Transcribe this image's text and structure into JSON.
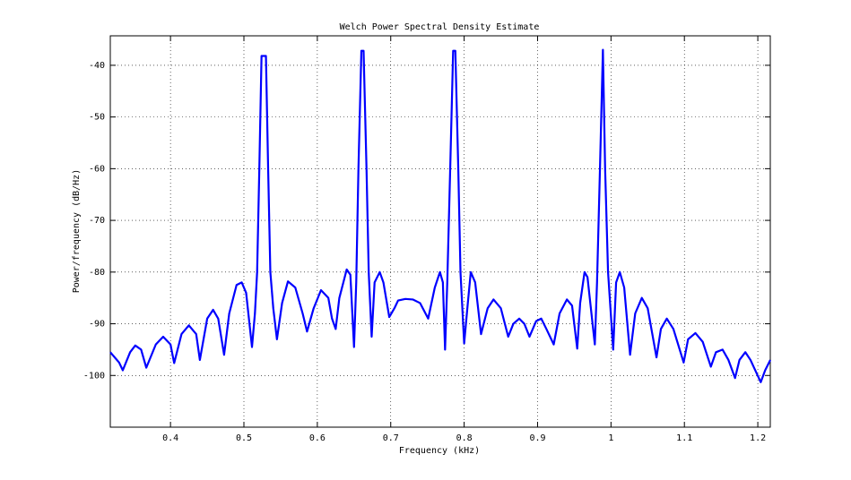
{
  "chart_data": {
    "type": "line",
    "title": "Welch Power Spectral Density Estimate",
    "xlabel": "Frequency (kHz)",
    "ylabel": "Power/frequency (dB/Hz)",
    "xlim": [
      0.318,
      1.217
    ],
    "ylim": [
      -110,
      -34.3
    ],
    "xticks": [
      0.4,
      0.5,
      0.6,
      0.7,
      0.8,
      0.9,
      1,
      1.1,
      1.2
    ],
    "yticks": [
      -100,
      -90,
      -80,
      -70,
      -60,
      -50,
      -40
    ],
    "grid": true,
    "x": [
      0.318,
      0.33,
      0.335,
      0.345,
      0.352,
      0.36,
      0.367,
      0.38,
      0.39,
      0.4,
      0.405,
      0.415,
      0.425,
      0.435,
      0.44,
      0.45,
      0.458,
      0.465,
      0.473,
      0.48,
      0.49,
      0.497,
      0.503,
      0.511,
      0.515,
      0.518,
      0.521,
      0.524,
      0.53,
      0.533,
      0.536,
      0.54,
      0.545,
      0.552,
      0.56,
      0.57,
      0.58,
      0.586,
      0.595,
      0.605,
      0.615,
      0.62,
      0.625,
      0.63,
      0.64,
      0.645,
      0.65,
      0.653,
      0.656,
      0.66,
      0.663,
      0.667,
      0.67,
      0.674,
      0.678,
      0.685,
      0.69,
      0.698,
      0.705,
      0.71,
      0.72,
      0.73,
      0.74,
      0.751,
      0.76,
      0.767,
      0.771,
      0.774,
      0.777,
      0.781,
      0.785,
      0.788,
      0.792,
      0.795,
      0.8,
      0.805,
      0.809,
      0.815,
      0.823,
      0.832,
      0.84,
      0.85,
      0.86,
      0.867,
      0.875,
      0.882,
      0.889,
      0.898,
      0.905,
      0.912,
      0.922,
      0.93,
      0.94,
      0.947,
      0.954,
      0.958,
      0.964,
      0.968,
      0.978,
      0.981,
      0.985,
      0.989,
      0.992,
      0.996,
      1.003,
      1.007,
      1.012,
      1.018,
      1.026,
      1.033,
      1.042,
      1.05,
      1.062,
      1.068,
      1.076,
      1.085,
      1.099,
      1.105,
      1.115,
      1.125,
      1.136,
      1.143,
      1.152,
      1.16,
      1.169,
      1.175,
      1.183,
      1.19,
      1.204,
      1.21,
      1.217
    ],
    "series": [
      {
        "color": "#0000ff",
        "values": [
          -95.5,
          -97.5,
          -99,
          -95.5,
          -94.2,
          -95,
          -98.5,
          -94,
          -92.5,
          -94,
          -97.6,
          -92,
          -90.3,
          -92,
          -97,
          -89,
          -87.3,
          -89,
          -96,
          -88,
          -82.5,
          -82,
          -84,
          -94.5,
          -88,
          -80,
          -60,
          -38.2,
          -38.2,
          -60,
          -80,
          -87,
          -93,
          -86,
          -81.8,
          -83,
          -88,
          -91.5,
          -87,
          -83.5,
          -85,
          -89,
          -91,
          -85,
          -79.5,
          -80.5,
          -94.5,
          -82,
          -60,
          -37.2,
          -37.2,
          -60,
          -80,
          -92.5,
          -82,
          -80,
          -82,
          -88.7,
          -87,
          -85.5,
          -85.2,
          -85.3,
          -86,
          -89,
          -83,
          -80,
          -82,
          -95,
          -82,
          -60,
          -37.2,
          -37.2,
          -60,
          -80,
          -93.8,
          -86,
          -80,
          -82,
          -92,
          -87,
          -85.3,
          -87,
          -92.5,
          -90,
          -89,
          -90,
          -92.5,
          -89.5,
          -89,
          -91,
          -94,
          -88,
          -85.3,
          -86.5,
          -94.8,
          -86,
          -80,
          -81,
          -94,
          -82,
          -60,
          -37,
          -60,
          -80,
          -95,
          -82,
          -80,
          -83,
          -96,
          -88,
          -85,
          -87,
          -96.5,
          -91,
          -89,
          -91,
          -97.5,
          -93,
          -91.8,
          -93.5,
          -98.3,
          -95.5,
          -95,
          -97,
          -100.5,
          -97,
          -95.5,
          -97,
          -101.3,
          -99,
          -97
        ]
      }
    ]
  }
}
